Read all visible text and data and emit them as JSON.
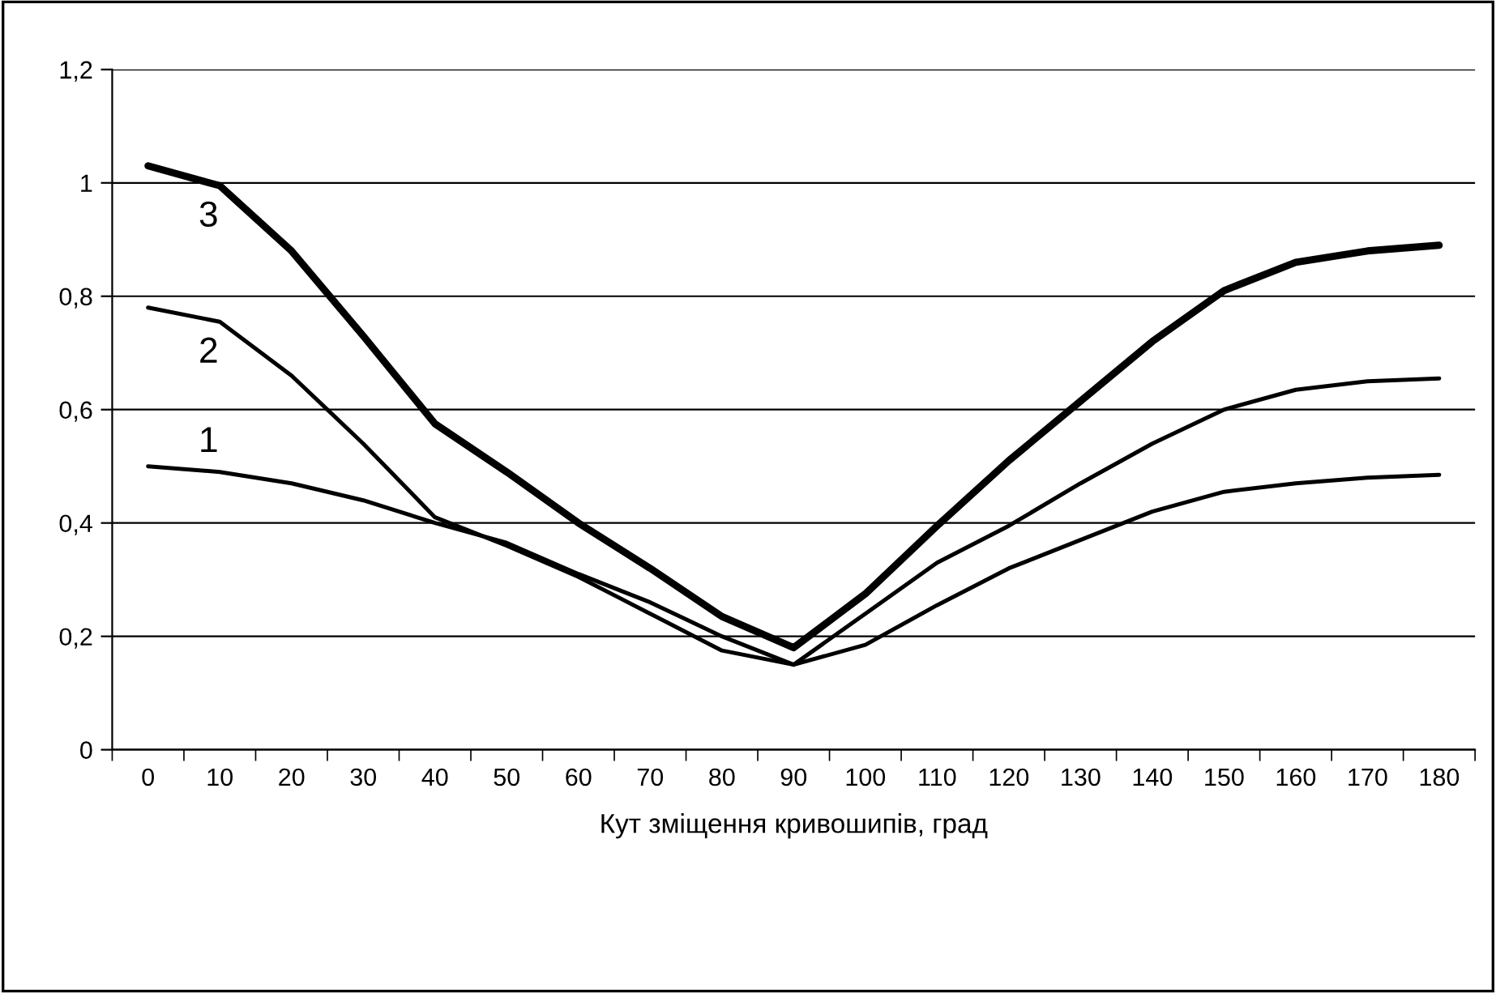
{
  "chart_data": {
    "type": "line",
    "xlabel": "Кут зміщення кривошипів, град",
    "categories": [
      "0",
      "10",
      "20",
      "30",
      "40",
      "50",
      "60",
      "70",
      "80",
      "90",
      "100",
      "110",
      "120",
      "130",
      "140",
      "150",
      "160",
      "170",
      "180"
    ],
    "series": [
      {
        "name": "1",
        "color": "#000000",
        "values": [
          0.5,
          0.49,
          0.47,
          0.44,
          0.4,
          0.365,
          0.31,
          0.26,
          0.2,
          0.15,
          0.185,
          0.255,
          0.32,
          0.37,
          0.42,
          0.455,
          0.47,
          0.48,
          0.485
        ]
      },
      {
        "name": "2",
        "color": "#000000",
        "values": [
          0.78,
          0.755,
          0.66,
          0.54,
          0.41,
          0.36,
          0.305,
          0.24,
          0.175,
          0.15,
          0.24,
          0.33,
          0.395,
          0.47,
          0.54,
          0.6,
          0.635,
          0.65,
          0.655
        ]
      },
      {
        "name": "3",
        "color": "#000000",
        "values": [
          1.03,
          0.995,
          0.88,
          0.73,
          0.575,
          0.49,
          0.4,
          0.32,
          0.235,
          0.18,
          0.275,
          0.395,
          0.51,
          0.615,
          0.72,
          0.81,
          0.86,
          0.88,
          0.89
        ]
      }
    ],
    "ylim": [
      0,
      1.2
    ],
    "yticks": [
      0,
      {
        "value": 0.2,
        "label": "0,2"
      },
      {
        "value": 0.4,
        "label": "0,4"
      },
      {
        "value": 0.6,
        "label": "0,6"
      },
      {
        "value": 0.8,
        "label": "0,8"
      },
      1,
      {
        "value": 1.2,
        "label": "1,2"
      }
    ],
    "grid": "y",
    "marker": "none",
    "line_style": "solid"
  }
}
